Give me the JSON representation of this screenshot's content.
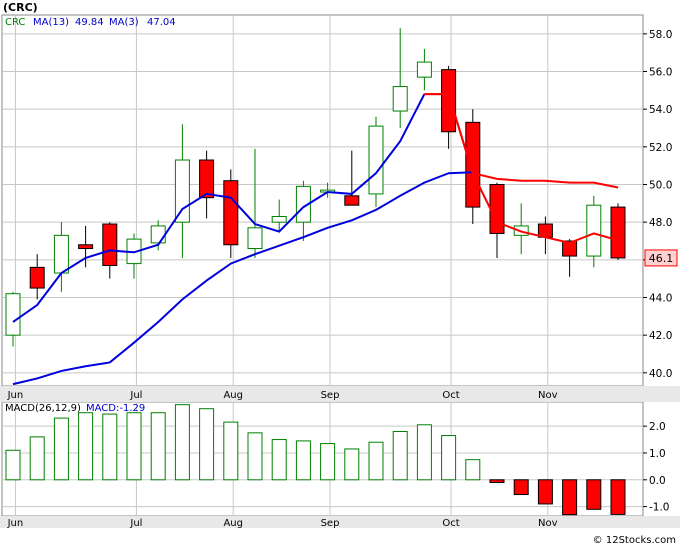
{
  "header": {
    "title": "(CRC)",
    "legend": [
      {
        "name": "CRC",
        "color": "#008000"
      },
      {
        "name": "MA(13)",
        "value": "49.84",
        "color": "#0000CC"
      },
      {
        "name": "MA(3)",
        "value": "47.04",
        "color": "#000000"
      }
    ]
  },
  "macd_legend": [
    {
      "name": "MACD(26,12,9)",
      "color": "#000000"
    },
    {
      "name": "MACD:-1.29",
      "color": "#0000CC"
    }
  ],
  "price_tag": "46.1",
  "watermark": "© 12Stocks.com",
  "colors": {
    "up": "#008000",
    "down": "#ff0000",
    "ma13": "#0000dd",
    "ma3": "#ff0000",
    "grid": "#c8c8c8",
    "panel_bg": "#ffffff"
  },
  "chart_data": [
    {
      "type": "candlestick",
      "title": "(CRC)",
      "months": [
        {
          "label": "Jun",
          "at_week": 1.0
        },
        {
          "label": "Jul",
          "at_week": 6.0
        },
        {
          "label": "Aug",
          "at_week": 10.0
        },
        {
          "label": "Sep",
          "at_week": 14.0
        },
        {
          "label": "Oct",
          "at_week": 19.0
        },
        {
          "label": "Nov",
          "at_week": 23.0
        }
      ],
      "yticks": [
        "40.0",
        "42.0",
        "44.0",
        "46.0",
        "48.0",
        "50.0",
        "52.0",
        "54.0",
        "56.0",
        "58.0"
      ],
      "ylim": [
        39.3,
        59.0
      ],
      "candles": [
        {
          "open": 42.0,
          "high": 44.3,
          "low": 41.4,
          "close": 44.2
        },
        {
          "open": 45.6,
          "high": 46.3,
          "low": 43.9,
          "close": 44.5
        },
        {
          "open": 45.3,
          "high": 48.0,
          "low": 44.3,
          "close": 47.3
        },
        {
          "open": 46.8,
          "high": 47.8,
          "low": 45.6,
          "close": 46.6
        },
        {
          "open": 47.9,
          "high": 48.0,
          "low": 45.0,
          "close": 45.7
        },
        {
          "open": 45.8,
          "high": 47.4,
          "low": 45.0,
          "close": 47.1
        },
        {
          "open": 46.9,
          "high": 48.1,
          "low": 46.5,
          "close": 47.8
        },
        {
          "open": 48.0,
          "high": 53.2,
          "low": 46.1,
          "close": 51.3
        },
        {
          "open": 51.3,
          "high": 51.8,
          "low": 48.2,
          "close": 49.3
        },
        {
          "open": 50.2,
          "high": 50.8,
          "low": 46.1,
          "close": 46.8
        },
        {
          "open": 46.6,
          "high": 51.9,
          "low": 46.1,
          "close": 47.7
        },
        {
          "open": 48.0,
          "high": 49.2,
          "low": 47.5,
          "close": 48.3
        },
        {
          "open": 48.0,
          "high": 50.2,
          "low": 47.0,
          "close": 49.9
        },
        {
          "open": 49.6,
          "high": 50.1,
          "low": 49.3,
          "close": 49.7
        },
        {
          "open": 49.4,
          "high": 51.8,
          "low": 48.9,
          "close": 48.9
        },
        {
          "open": 49.5,
          "high": 53.6,
          "low": 48.8,
          "close": 53.1
        },
        {
          "open": 53.9,
          "high": 58.3,
          "low": 53.0,
          "close": 55.2
        },
        {
          "open": 55.7,
          "high": 57.2,
          "low": 55.0,
          "close": 56.5
        },
        {
          "open": 56.1,
          "high": 56.3,
          "low": 51.9,
          "close": 52.8
        },
        {
          "open": 53.3,
          "high": 54.0,
          "low": 47.9,
          "close": 48.8
        },
        {
          "open": 50.0,
          "high": 50.1,
          "low": 46.1,
          "close": 47.4
        },
        {
          "open": 47.3,
          "high": 49.0,
          "low": 46.3,
          "close": 47.8
        },
        {
          "open": 47.9,
          "high": 48.3,
          "low": 46.3,
          "close": 47.2
        },
        {
          "open": 47.0,
          "high": 47.1,
          "low": 45.1,
          "close": 46.2
        },
        {
          "open": 46.2,
          "high": 49.4,
          "low": 45.6,
          "close": 48.9
        },
        {
          "open": 48.8,
          "high": 49.0,
          "low": 46.0,
          "close": 46.1
        }
      ],
      "series": [
        {
          "name": "MA(13)",
          "values": [
            null,
            null,
            null,
            null,
            null,
            null,
            null,
            null,
            null,
            null,
            null,
            null,
            null,
            null,
            null,
            null,
            null,
            null,
            null,
            null,
            null,
            null,
            null,
            null,
            null,
            null
          ]
        },
        {
          "name": "MA(3)",
          "values": [
            null,
            null,
            null,
            null,
            null,
            null,
            null,
            null,
            null,
            null,
            null,
            null,
            null,
            null,
            null,
            null,
            null,
            null,
            null,
            null,
            null,
            null,
            null,
            null,
            null,
            null
          ]
        }
      ],
      "ma13_line": [
        39.4,
        39.7,
        40.1,
        40.35,
        40.55,
        41.6,
        42.7,
        43.9,
        44.9,
        45.8,
        46.3,
        46.75,
        47.2,
        47.7,
        48.1,
        48.65,
        49.4,
        50.1,
        50.6,
        50.65,
        null,
        null,
        null,
        null,
        null,
        null
      ],
      "ma3_line": [
        42.7,
        43.6,
        45.3,
        46.1,
        46.5,
        46.4,
        46.8,
        48.7,
        49.5,
        49.3,
        47.9,
        47.5,
        48.8,
        49.6,
        49.5,
        50.6,
        52.3,
        54.8,
        54.8,
        50.6,
        50.3,
        50.2,
        50.2,
        50.1,
        50.1,
        49.84
      ],
      "ma3_red_from": 17,
      "ma_other_line": [
        null,
        null,
        null,
        null,
        null,
        null,
        null,
        null,
        null,
        null,
        null,
        null,
        null,
        null,
        null,
        null,
        null,
        54.8,
        54.8,
        50.6,
        48.0,
        47.5,
        47.2,
        46.9,
        47.4,
        47.04
      ]
    },
    {
      "type": "bar",
      "title": "MACD(26,12,9)",
      "yticks": [
        "-1.0",
        "0.0",
        "1.0",
        "2.0"
      ],
      "ylim": [
        -1.35,
        2.9
      ],
      "values": [
        1.1,
        1.6,
        2.3,
        2.5,
        2.45,
        2.5,
        2.5,
        2.8,
        2.65,
        2.15,
        1.75,
        1.5,
        1.45,
        1.35,
        1.15,
        1.4,
        1.8,
        2.05,
        1.65,
        0.75,
        -0.1,
        -0.55,
        -0.9,
        -1.3,
        -1.1,
        -1.29
      ]
    }
  ]
}
